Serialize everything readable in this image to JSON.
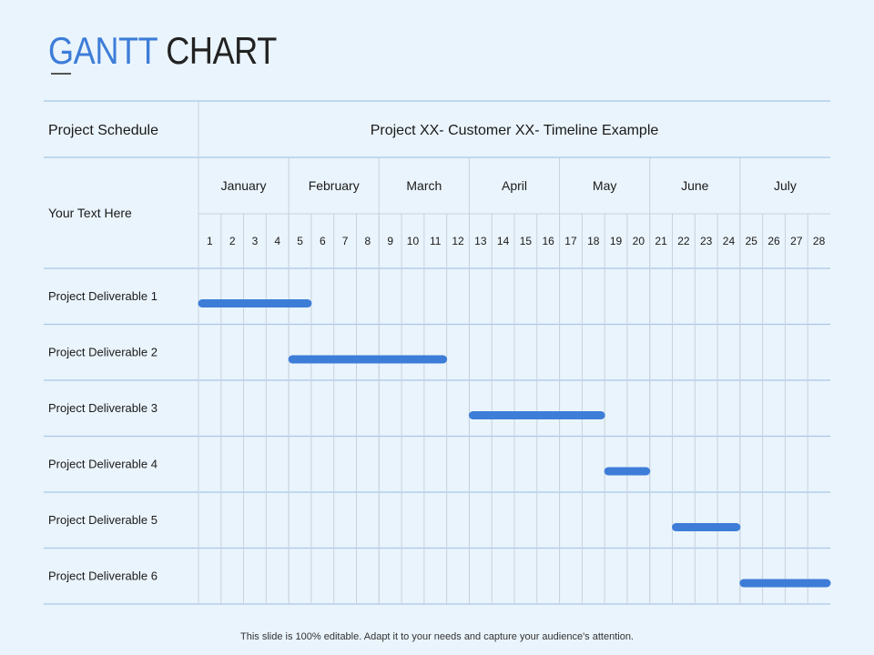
{
  "title": {
    "part1": "GANTT",
    "part2": "CHART"
  },
  "table": {
    "header_left": "Project Schedule",
    "header_right": "Project XX- Customer XX- Timeline Example",
    "subheader_left": "Your Text Here"
  },
  "footer": "This slide is 100% editable. Adapt it to your needs and capture your audience's attention.",
  "colors": {
    "bar": "#3d7dd8",
    "title_accent": "#3d7dd8",
    "grid": "#c7d2dc",
    "rule": "#a9c7e6"
  },
  "chart_data": {
    "type": "gantt",
    "months": [
      {
        "name": "January",
        "units": [
          1,
          4
        ]
      },
      {
        "name": "February",
        "units": [
          5,
          8
        ]
      },
      {
        "name": "March",
        "units": [
          9,
          12
        ]
      },
      {
        "name": "April",
        "units": [
          13,
          16
        ]
      },
      {
        "name": "May",
        "units": [
          17,
          20
        ]
      },
      {
        "name": "June",
        "units": [
          21,
          24
        ]
      },
      {
        "name": "July",
        "units": [
          25,
          28
        ]
      }
    ],
    "units": [
      1,
      2,
      3,
      4,
      5,
      6,
      7,
      8,
      9,
      10,
      11,
      12,
      13,
      14,
      15,
      16,
      17,
      18,
      19,
      20,
      21,
      22,
      23,
      24,
      25,
      26,
      27,
      28
    ],
    "tasks": [
      {
        "name": "Project Deliverable 1",
        "start": 1,
        "end": 5
      },
      {
        "name": "Project Deliverable 2",
        "start": 5,
        "end": 11
      },
      {
        "name": "Project Deliverable 3",
        "start": 13,
        "end": 18
      },
      {
        "name": "Project Deliverable 4",
        "start": 19,
        "end": 20
      },
      {
        "name": "Project Deliverable 5",
        "start": 22,
        "end": 24
      },
      {
        "name": "Project Deliverable 6",
        "start": 25,
        "end": 28
      }
    ]
  }
}
